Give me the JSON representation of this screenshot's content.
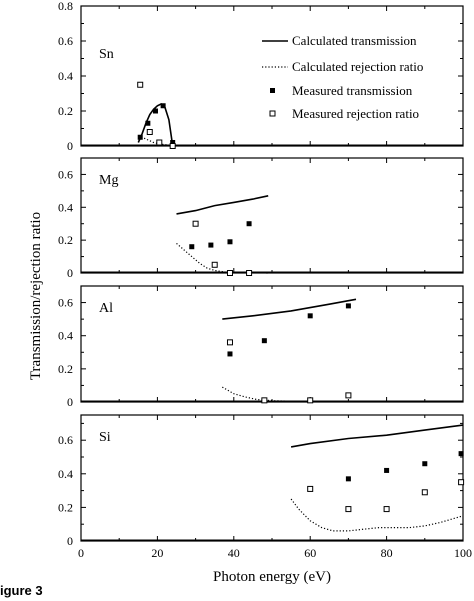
{
  "figure_caption": "igure 3",
  "chart_data": {
    "type": "line",
    "shared_xlabel": "Photon energy (eV)",
    "shared_ylabel": "Transmission/rejection ratio",
    "xlim": [
      0,
      100
    ],
    "x_ticks": [
      "0",
      "20",
      "40",
      "60",
      "80",
      "100"
    ],
    "legend": {
      "placement": "top-right of first panel",
      "entries": [
        {
          "label": "Calculated transmission",
          "style": "solid-line"
        },
        {
          "label": "Calculated rejection ratio",
          "style": "dotted-line"
        },
        {
          "label": "Measured transmission",
          "style": "filled-square"
        },
        {
          "label": "Measured rejection ratio",
          "style": "open-square"
        }
      ]
    },
    "panels": [
      {
        "label": "Sn",
        "ylim": [
          0,
          0.8
        ],
        "y_ticks": [
          "0",
          "0.2",
          "0.4",
          "0.6",
          "0.8"
        ],
        "series": [
          {
            "name": "Calculated transmission",
            "style": "solid-line",
            "x": [
              15,
              16,
              17,
              18,
              19,
              20,
              21,
              22,
              23,
              24
            ],
            "y": [
              0.02,
              0.07,
              0.13,
              0.18,
              0.21,
              0.23,
              0.24,
              0.22,
              0.15,
              0.0
            ]
          },
          {
            "name": "Calculated rejection ratio",
            "style": "dotted-line",
            "x": [
              15,
              17,
              19,
              21,
              23,
              24
            ],
            "y": [
              0.06,
              0.04,
              0.02,
              0.01,
              0.005,
              0.0
            ]
          },
          {
            "name": "Measured transmission",
            "style": "filled-square",
            "x": [
              15.5,
              17.5,
              19.5,
              21.5,
              24
            ],
            "y": [
              0.05,
              0.13,
              0.2,
              0.23,
              0.02
            ]
          },
          {
            "name": "Measured rejection ratio",
            "style": "open-square",
            "x": [
              15.5,
              18,
              20.5,
              24
            ],
            "y": [
              0.35,
              0.08,
              0.02,
              0.0
            ]
          }
        ]
      },
      {
        "label": "Mg",
        "ylim": [
          0,
          0.7
        ],
        "y_ticks": [
          "0",
          "0.2",
          "0.4",
          "0.6"
        ],
        "series": [
          {
            "name": "Calculated transmission",
            "style": "solid-line",
            "x": [
              25,
              30,
              35,
              40,
              45,
              49
            ],
            "y": [
              0.36,
              0.38,
              0.41,
              0.43,
              0.45,
              0.47
            ]
          },
          {
            "name": "Calculated rejection ratio",
            "style": "dotted-line",
            "x": [
              25,
              27,
              29,
              31,
              33,
              35,
              38,
              42,
              46,
              49
            ],
            "y": [
              0.18,
              0.14,
              0.1,
              0.06,
              0.03,
              0.015,
              0.005,
              0.002,
              0.001,
              0.0
            ]
          },
          {
            "name": "Measured transmission",
            "style": "filled-square",
            "x": [
              29,
              34,
              39,
              44
            ],
            "y": [
              0.16,
              0.17,
              0.19,
              0.3
            ]
          },
          {
            "name": "Measured rejection ratio",
            "style": "open-square",
            "x": [
              30,
              35,
              39,
              44
            ],
            "y": [
              0.3,
              0.05,
              0.0,
              0.0
            ]
          }
        ]
      },
      {
        "label": "Al",
        "ylim": [
          0,
          0.7
        ],
        "y_ticks": [
          "0",
          "0.2",
          "0.4",
          "0.6"
        ],
        "series": [
          {
            "name": "Calculated transmission",
            "style": "solid-line",
            "x": [
              37,
              45,
              55,
              65,
              72
            ],
            "y": [
              0.5,
              0.52,
              0.55,
              0.59,
              0.62
            ]
          },
          {
            "name": "Calculated rejection ratio",
            "style": "dotted-line",
            "x": [
              37,
              40,
              43,
              46,
              50,
              55,
              60,
              65,
              72
            ],
            "y": [
              0.09,
              0.05,
              0.03,
              0.015,
              0.008,
              0.005,
              0.004,
              0.004,
              0.003
            ]
          },
          {
            "name": "Measured transmission",
            "style": "filled-square",
            "x": [
              39,
              48,
              60,
              70
            ],
            "y": [
              0.29,
              0.37,
              0.52,
              0.58
            ]
          },
          {
            "name": "Measured rejection ratio",
            "style": "open-square",
            "x": [
              39,
              48,
              60,
              70
            ],
            "y": [
              0.36,
              0.01,
              0.01,
              0.04
            ]
          }
        ]
      },
      {
        "label": "Si",
        "ylim": [
          0,
          0.75
        ],
        "y_ticks": [
          "0",
          "0.2",
          "0.4",
          "0.6"
        ],
        "series": [
          {
            "name": "Calculated transmission",
            "style": "solid-line",
            "x": [
              55,
              60,
              70,
              80,
              90,
              100
            ],
            "y": [
              0.56,
              0.58,
              0.61,
              0.63,
              0.66,
              0.69
            ]
          },
          {
            "name": "Calculated rejection ratio",
            "style": "dotted-line",
            "x": [
              55,
              57,
              60,
              63,
              66,
              70,
              74,
              78,
              82,
              86,
              90,
              94,
              97,
              100
            ],
            "y": [
              0.25,
              0.19,
              0.12,
              0.08,
              0.06,
              0.06,
              0.07,
              0.08,
              0.08,
              0.08,
              0.09,
              0.11,
              0.13,
              0.15
            ]
          },
          {
            "name": "Measured transmission",
            "style": "filled-square",
            "x": [
              70,
              80,
              90,
              99.5
            ],
            "y": [
              0.37,
              0.42,
              0.46,
              0.52
            ]
          },
          {
            "name": "Measured rejection ratio",
            "style": "open-square",
            "x": [
              60,
              70,
              80,
              90,
              99.5
            ],
            "y": [
              0.31,
              0.19,
              0.19,
              0.29,
              0.35
            ]
          }
        ]
      }
    ]
  }
}
